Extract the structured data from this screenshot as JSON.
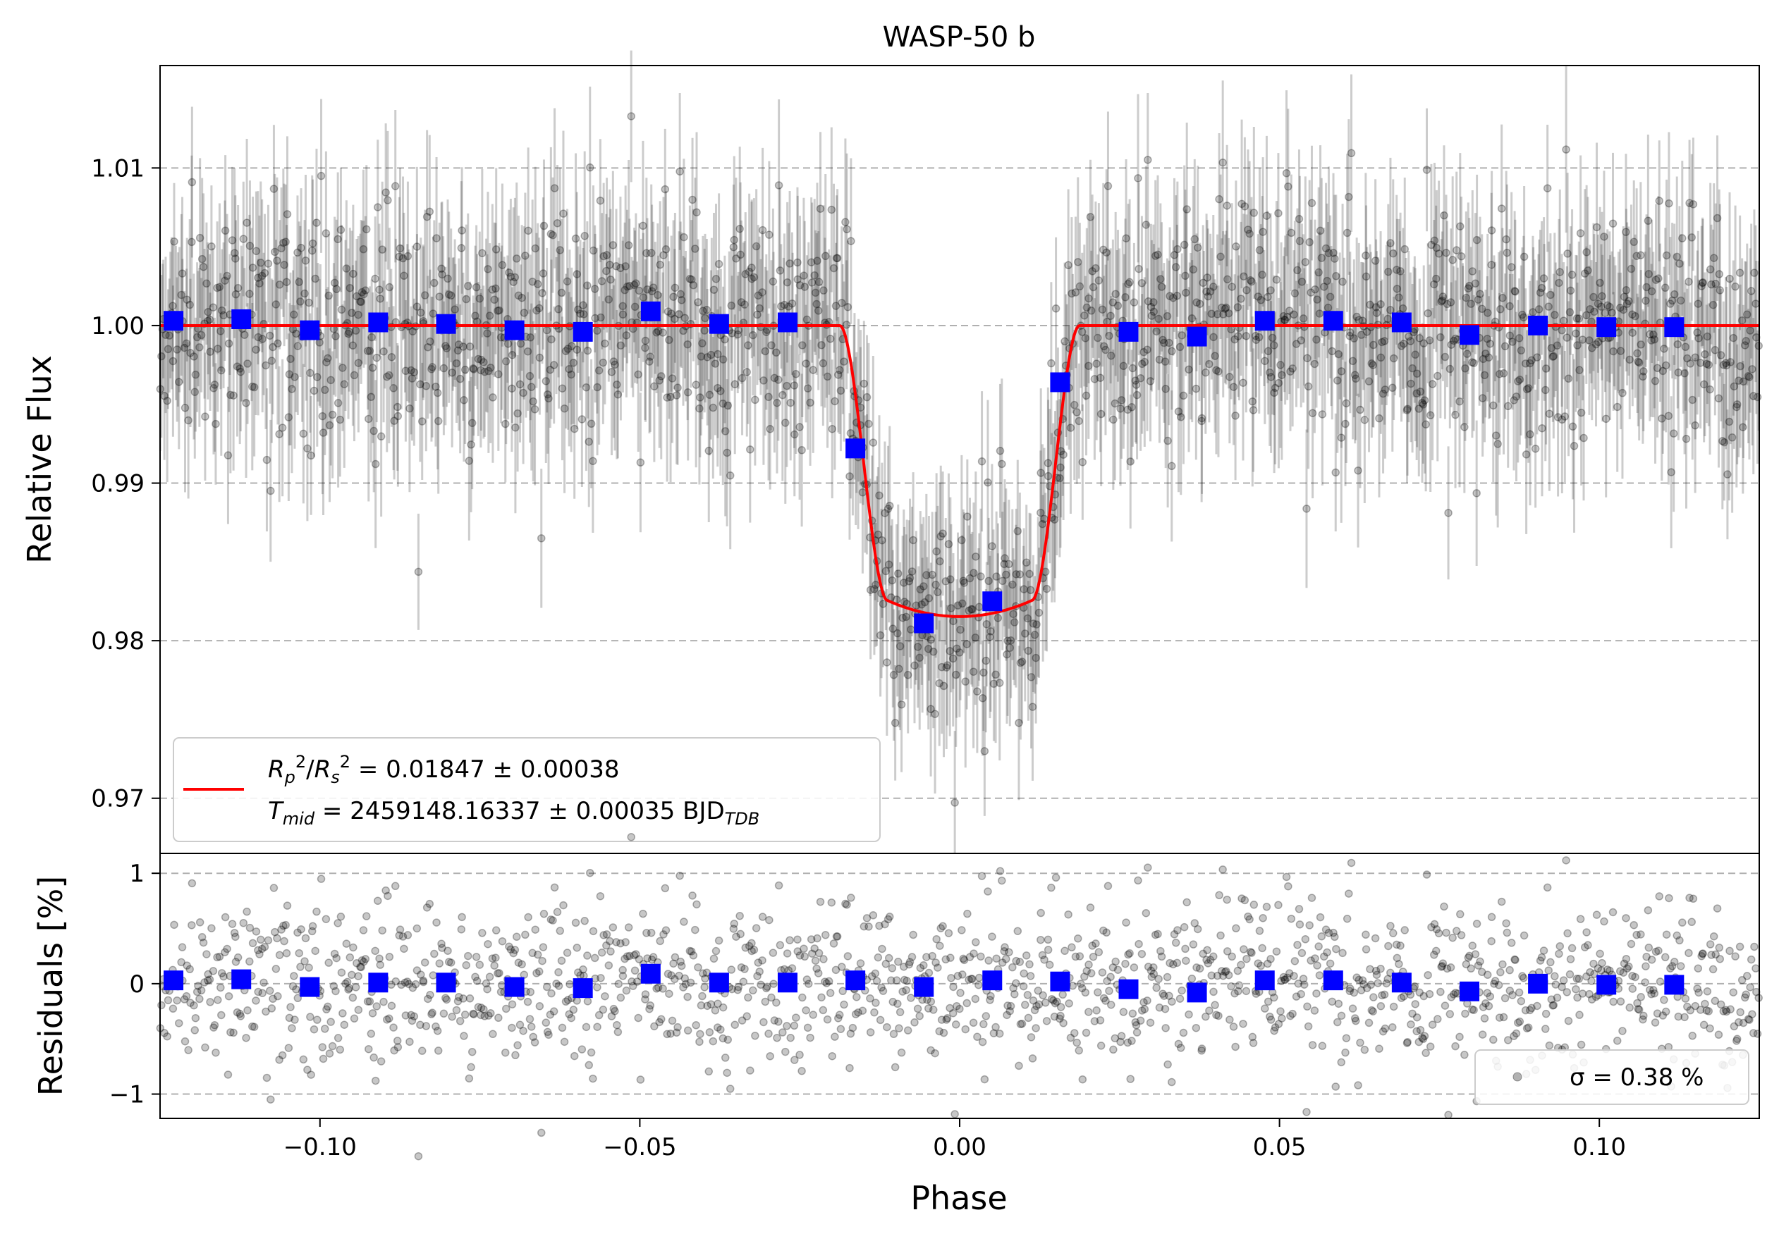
{
  "chart_data": {
    "type": "scatter",
    "title": "WASP-50 b",
    "xlabel": "Phase",
    "xlim": [
      -0.125,
      0.125
    ],
    "x_ticks": [
      -0.1,
      -0.05,
      0.0,
      0.05,
      0.1
    ],
    "x_tick_labels": [
      "−0.10",
      "−0.05",
      "0.00",
      "0.05",
      "0.10"
    ],
    "top_panel": {
      "ylabel": "Relative Flux",
      "ylim": [
        0.9665,
        1.0165
      ],
      "y_ticks": [
        0.97,
        0.98,
        0.99,
        1.0,
        1.01
      ],
      "y_tick_labels": [
        "0.97",
        "0.98",
        "0.99",
        "1.00",
        "1.01"
      ],
      "grid": "horizontal dashed",
      "raw_data": {
        "color": "#000000",
        "scatter_ppm": 3800,
        "n_points": 1500,
        "note": "grey points with error bars"
      },
      "model": {
        "color": "#ff0000",
        "label_line1": "Rₚ²/Rₛ² = 0.01847 ± 0.00038",
        "label_line2": "Tₘᵢd = 2459148.16337 ± 0.00035 BJDᴛᴅʙ",
        "rp2_rs2": "0.01847",
        "rp2_rs2_err": "0.00038",
        "tmid": "2459148.16337",
        "tmid_err": "0.00035",
        "time_unit": "BJD",
        "time_unit_sub": "TDB",
        "transit_depth": 0.01847,
        "t14_phase": 0.0375,
        "t23_phase": 0.0225
      },
      "binned": {
        "color": "#0000ff",
        "x": [
          -0.1229,
          -0.1123,
          -0.1016,
          -0.0909,
          -0.0803,
          -0.0696,
          -0.0589,
          -0.0483,
          -0.0376,
          -0.0269,
          -0.0163,
          -0.0056,
          0.0051,
          0.0157,
          0.0264,
          0.0371,
          0.0477,
          0.0584,
          0.0691,
          0.0797,
          0.0904,
          0.1011,
          0.1117
        ],
        "y": [
          1.0003,
          1.0004,
          0.9997,
          1.0002,
          1.0001,
          0.9997,
          0.9996,
          1.0009,
          1.0001,
          1.0002,
          0.9922,
          0.9811,
          0.9825,
          0.9964,
          0.9996,
          0.9993,
          1.0003,
          1.0003,
          1.0002,
          0.9994,
          1.0,
          0.9999,
          0.9999
        ]
      }
    },
    "bottom_panel": {
      "ylabel": "Residuals [%]",
      "ylim": [
        -1.22,
        1.18
      ],
      "y_ticks": [
        -1,
        0,
        1
      ],
      "y_tick_labels": [
        "−1",
        "0",
        "1"
      ],
      "grid": "horizontal dashed",
      "legend_label": "σ = 0.38 %",
      "sigma_percent": 0.38,
      "binned_residuals": [
        0.03,
        0.04,
        -0.03,
        0.01,
        0.01,
        -0.03,
        -0.04,
        0.09,
        0.01,
        0.01,
        0.03,
        -0.03,
        0.03,
        0.02,
        -0.05,
        -0.08,
        0.03,
        0.03,
        0.01,
        -0.07,
        0.0,
        -0.01,
        -0.01
      ]
    }
  }
}
